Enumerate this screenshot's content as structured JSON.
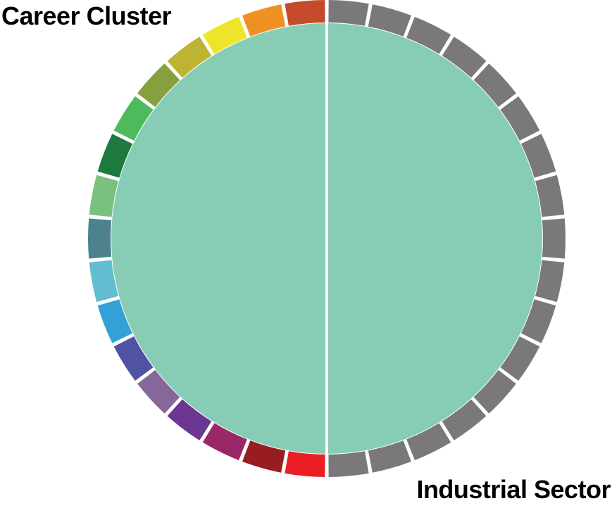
{
  "labels": {
    "left": "Career Cluster",
    "right": "Industrial Sector"
  },
  "colors": {
    "center_fill": "#87CDB6",
    "divider": "#ffffff",
    "right_segment": "#7A787B",
    "left_segments": [
      "#C54A29",
      "#EF9023",
      "#EEE52A",
      "#BEB433",
      "#86A03E",
      "#4DBB5C",
      "#1D7A3E",
      "#7AC17F",
      "#4B828E",
      "#63BDD1",
      "#33A1D8",
      "#5053A3",
      "#85679B",
      "#6A3690",
      "#9A2867",
      "#981C21",
      "#EB1D25"
    ]
  },
  "diagram": {
    "left_segment_count": 17,
    "right_segment_count": 17
  }
}
